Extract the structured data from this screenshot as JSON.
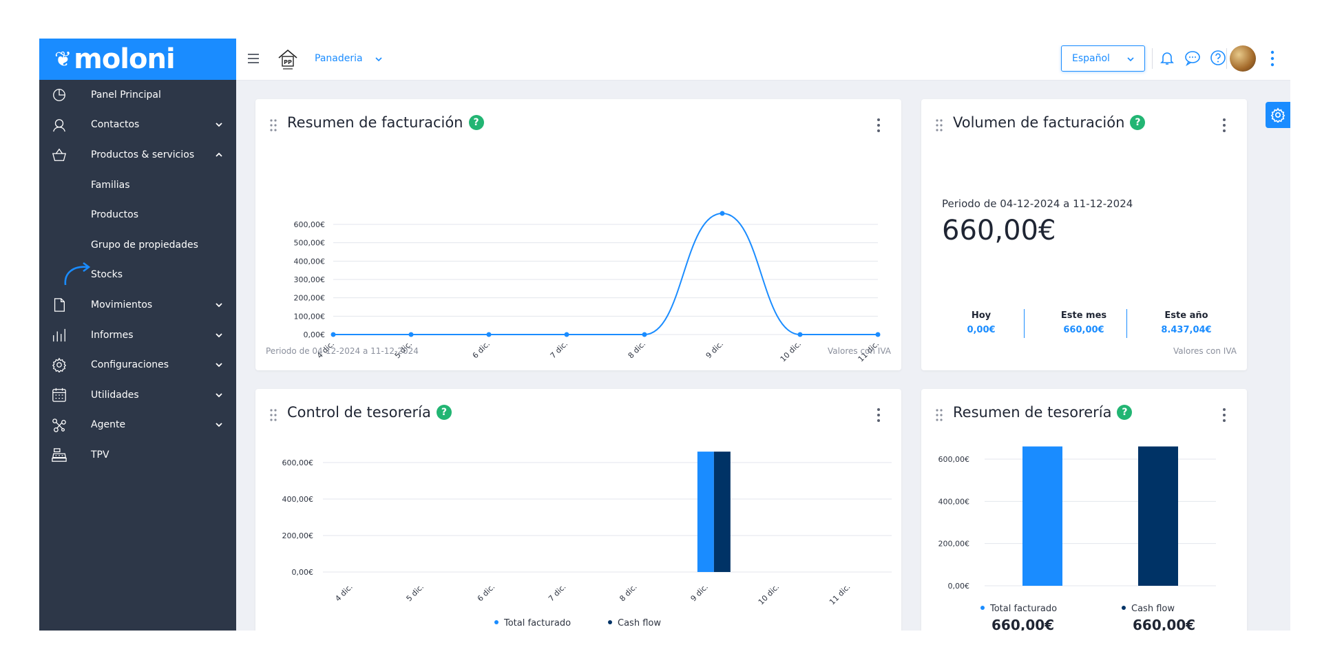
{
  "app": {
    "logo": "moloni"
  },
  "sidebar": {
    "items": [
      {
        "label": "Panel Principal",
        "icon": "pie-chart-icon"
      },
      {
        "label": "Contactos",
        "icon": "user-icon",
        "expand": "down"
      },
      {
        "label": "Productos & servicios",
        "icon": "basket-icon",
        "expand": "up"
      },
      {
        "label": "Familias"
      },
      {
        "label": "Productos"
      },
      {
        "label": "Grupo de propiedades"
      },
      {
        "label": "Stocks"
      },
      {
        "label": "Movimientos",
        "icon": "document-icon",
        "expand": "down"
      },
      {
        "label": "Informes",
        "icon": "bar-chart-icon",
        "expand": "down"
      },
      {
        "label": "Configuraciones",
        "icon": "gear-icon",
        "expand": "down"
      },
      {
        "label": "Utilidades",
        "icon": "calendar-icon",
        "expand": "down"
      },
      {
        "label": "Agente",
        "icon": "network-icon",
        "expand": "down"
      },
      {
        "label": "TPV",
        "icon": "cash-register-icon"
      }
    ]
  },
  "header": {
    "store_name": "Panaderia",
    "store_logo_text": "PP",
    "language": "Español"
  },
  "cards": {
    "resumen_facturacion": {
      "title": "Resumen de facturación",
      "period": "Periodo de 04-12-2024 a 11-12-2024",
      "note": "Valores con IVA"
    },
    "volumen_facturacion": {
      "title": "Volumen de facturación",
      "period": "Periodo de 04-12-2024 a 11-12-2024",
      "total": "660,00€",
      "stats": [
        {
          "label": "Hoy",
          "value": "0,00€"
        },
        {
          "label": "Este mes",
          "value": "660,00€"
        },
        {
          "label": "Este año",
          "value": "8.437,04€"
        }
      ],
      "note": "Valores con IVA"
    },
    "control_tesoreria": {
      "title": "Control de tesorería",
      "legend": [
        "Total facturado",
        "Cash flow"
      ]
    },
    "resumen_tesoreria": {
      "title": "Resumen de tesorería",
      "legend": [
        "Total facturado",
        "Cash flow"
      ],
      "values": [
        "660,00€",
        "660,00€"
      ]
    }
  },
  "colors": {
    "accent": "#1a8cff",
    "dark_series": "#003366",
    "help": "#22b573",
    "sidebar": "#2d3748"
  },
  "chart_data": [
    {
      "type": "line",
      "title": "Resumen de facturación",
      "categories": [
        "4 dic.",
        "5 dic.",
        "6 dic.",
        "7 dic.",
        "8 dic.",
        "9 dic.",
        "10 dic.",
        "11 dic."
      ],
      "values": [
        0,
        0,
        0,
        0,
        0,
        660,
        0,
        0
      ],
      "yticks": [
        "0,00€",
        "100,00€",
        "200,00€",
        "300,00€",
        "400,00€",
        "500,00€",
        "600,00€"
      ],
      "ylim": [
        0,
        600
      ],
      "grid": true
    },
    {
      "type": "bar",
      "title": "Control de tesorería",
      "categories": [
        "4 dic.",
        "5 dic.",
        "6 dic.",
        "7 dic.",
        "8 dic.",
        "9 dic.",
        "10 dic.",
        "11 dic."
      ],
      "series": [
        {
          "name": "Total facturado",
          "values": [
            0,
            0,
            0,
            0,
            0,
            660,
            0,
            0
          ],
          "color": "#1a8cff"
        },
        {
          "name": "Cash flow",
          "values": [
            0,
            0,
            0,
            0,
            0,
            660,
            0,
            0
          ],
          "color": "#003366"
        }
      ],
      "yticks": [
        "0,00€",
        "200,00€",
        "400,00€",
        "600,00€"
      ],
      "ylim": [
        0,
        600
      ],
      "legend": "bottom"
    },
    {
      "type": "bar",
      "title": "Resumen de tesorería",
      "categories": [
        "Total facturado",
        "Cash flow"
      ],
      "values": [
        660,
        660
      ],
      "colors": [
        "#1a8cff",
        "#003366"
      ],
      "yticks": [
        "0,00€",
        "200,00€",
        "400,00€",
        "600,00€"
      ],
      "ylim": [
        0,
        600
      ],
      "legend": "bottom"
    }
  ]
}
